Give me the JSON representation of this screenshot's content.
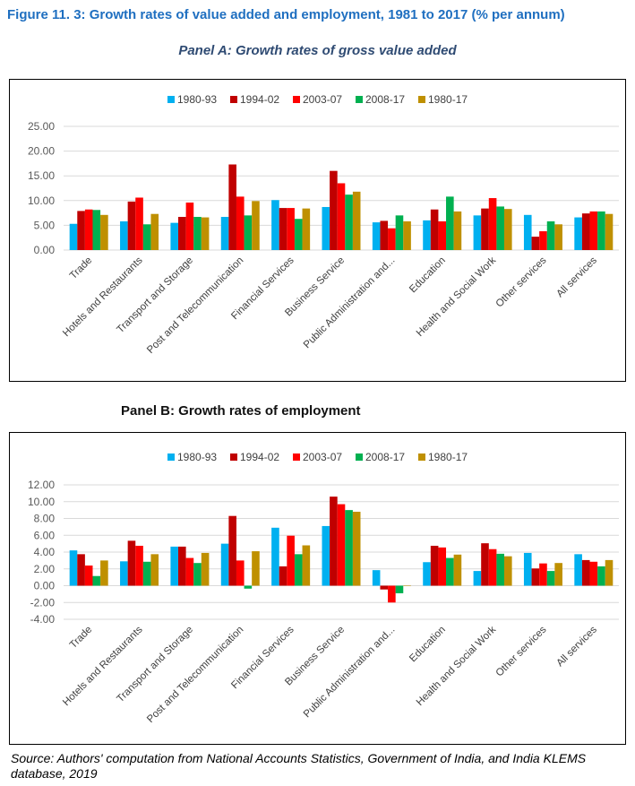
{
  "figure_title": "Figure 11. 3: Growth rates of value added and employment, 1981 to 2017 (% per annum)",
  "source": "Source: Authors' computation from National Accounts Statistics, Government of India, and India KLEMS database, 2019",
  "chart_data": [
    {
      "type": "bar",
      "title": "Panel A: Growth rates of gross value added",
      "ylim": [
        0,
        25
      ],
      "yticks": [
        "0.00",
        "5.00",
        "10.00",
        "15.00",
        "20.00",
        "25.00"
      ],
      "grid": true,
      "legend": "top",
      "categories": [
        "Trade",
        "Hotels and Restaurants",
        "Transport and Storage",
        "Post and Telecommunication",
        "Financial Services",
        "Business Service",
        "Public Administration and...",
        "Education",
        "Health and Social Work",
        "Other services",
        "All services"
      ],
      "series": [
        {
          "name": "1980-93",
          "color": "#00b0f0",
          "values": [
            5.3,
            5.8,
            5.5,
            6.7,
            10.1,
            8.7,
            5.6,
            6.0,
            7.0,
            7.1,
            6.6
          ]
        },
        {
          "name": "1994-02",
          "color": "#c00000",
          "values": [
            7.9,
            9.8,
            6.7,
            17.3,
            8.5,
            16.0,
            5.9,
            8.2,
            8.4,
            2.7,
            7.4
          ]
        },
        {
          "name": "2003-07",
          "color": "#ff0000",
          "values": [
            8.2,
            10.6,
            9.6,
            10.8,
            8.5,
            13.5,
            4.4,
            5.8,
            10.5,
            3.8,
            7.8
          ]
        },
        {
          "name": "2008-17",
          "color": "#00b050",
          "values": [
            8.1,
            5.2,
            6.7,
            7.0,
            6.3,
            11.2,
            7.0,
            10.8,
            8.8,
            5.8,
            7.8
          ]
        },
        {
          "name": "1980-17",
          "color": "#bf9000",
          "values": [
            7.1,
            7.3,
            6.6,
            9.9,
            8.4,
            11.8,
            5.8,
            7.8,
            8.3,
            5.2,
            7.3
          ]
        }
      ]
    },
    {
      "type": "bar",
      "title": "Panel B: Growth rates of employment",
      "ylim": [
        -4,
        12
      ],
      "yticks": [
        "-4.00",
        "-2.00",
        "0.00",
        "2.00",
        "4.00",
        "6.00",
        "8.00",
        "10.00",
        "12.00"
      ],
      "grid": true,
      "legend": "top",
      "categories": [
        "Trade",
        "Hotels and Restaurants",
        "Transport and Storage",
        "Post and Telecommunication",
        "Financial Services",
        "Business Service",
        "Public Administration and...",
        "Education",
        "Health and Social Work",
        "Other services",
        "All services"
      ],
      "series": [
        {
          "name": "1980-93",
          "color": "#00b0f0",
          "values": [
            4.2,
            2.9,
            4.65,
            5.0,
            6.9,
            7.1,
            1.85,
            2.8,
            1.75,
            3.9,
            3.75
          ]
        },
        {
          "name": "1994-02",
          "color": "#c00000",
          "values": [
            3.75,
            5.35,
            4.65,
            8.3,
            2.3,
            10.6,
            -0.45,
            4.75,
            5.05,
            2.05,
            3.05
          ]
        },
        {
          "name": "2003-07",
          "color": "#ff0000",
          "values": [
            2.4,
            4.75,
            3.3,
            3.0,
            5.95,
            9.7,
            -2.0,
            4.55,
            4.35,
            2.65,
            2.85
          ]
        },
        {
          "name": "2008-17",
          "color": "#00b050",
          "values": [
            1.15,
            2.85,
            2.7,
            -0.35,
            3.75,
            9.0,
            -0.9,
            3.3,
            3.8,
            1.75,
            2.3
          ]
        },
        {
          "name": "1980-17",
          "color": "#bf9000",
          "values": [
            3.0,
            3.75,
            3.9,
            4.1,
            4.8,
            8.8,
            0.0,
            3.7,
            3.5,
            2.7,
            3.05
          ]
        }
      ]
    }
  ]
}
